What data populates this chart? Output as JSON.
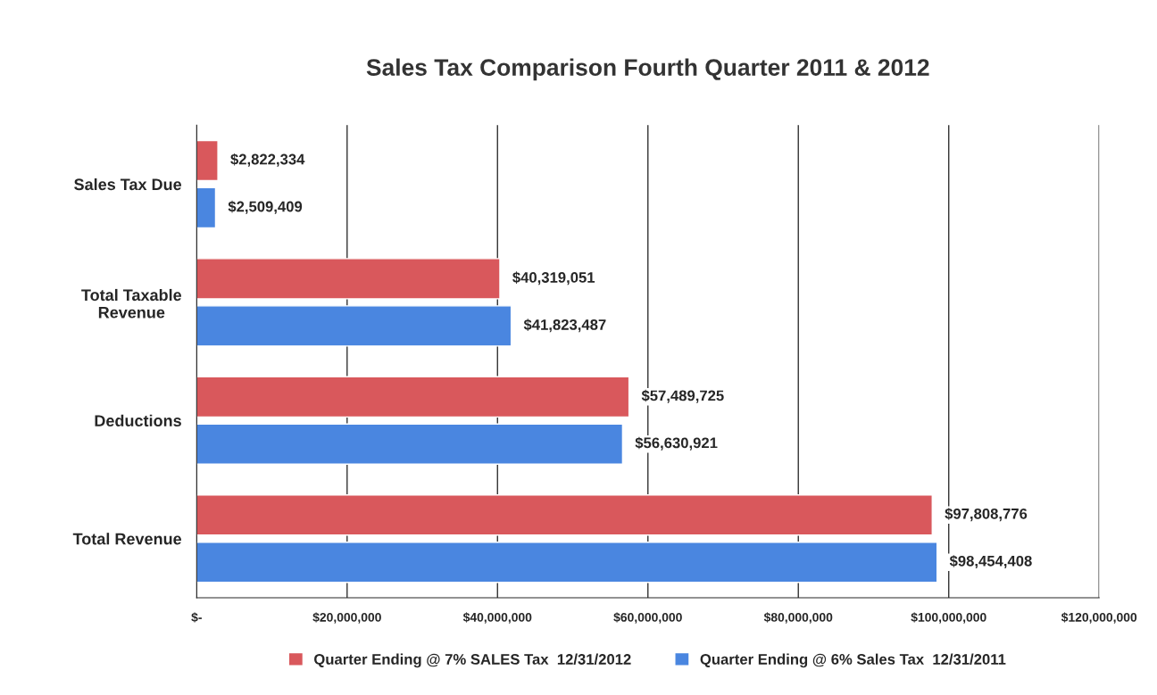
{
  "chart_data": {
    "type": "bar",
    "orientation": "horizontal",
    "title": "Sales Tax Comparison Fourth Quarter 2011 & 2012",
    "categories": [
      "Sales Tax Due",
      "Total Taxable\nRevenue",
      "Deductions",
      "Total Revenue"
    ],
    "series": [
      {
        "name": "Quarter Ending @ 7% SALES Tax  12/31/2012",
        "color": "#d9585c",
        "values": [
          2822334,
          40319051,
          57489725,
          97808776
        ],
        "value_labels": [
          "$2,822,334",
          "$40,319,051",
          "$57,489,725",
          "$97,808,776"
        ]
      },
      {
        "name": "Quarter Ending @ 6% Sales Tax  12/31/2011",
        "color": "#4a86e0",
        "values": [
          2509409,
          41823487,
          56630921,
          98454408
        ],
        "value_labels": [
          "$2,509,409",
          "$41,823,487",
          "$56,630,921",
          "$98,454,408"
        ]
      }
    ],
    "xlim": [
      0,
      120000000
    ],
    "xticks": [
      {
        "value": 0,
        "label": "$-"
      },
      {
        "value": 20000000,
        "label": "$20,000,000"
      },
      {
        "value": 40000000,
        "label": "$40,000,000"
      },
      {
        "value": 60000000,
        "label": "$60,000,000"
      },
      {
        "value": 80000000,
        "label": "$80,000,000"
      },
      {
        "value": 100000000,
        "label": "$100,000,000"
      },
      {
        "value": 120000000,
        "label": "$120,000,000"
      }
    ],
    "grid": "x",
    "legend": "bottom"
  }
}
